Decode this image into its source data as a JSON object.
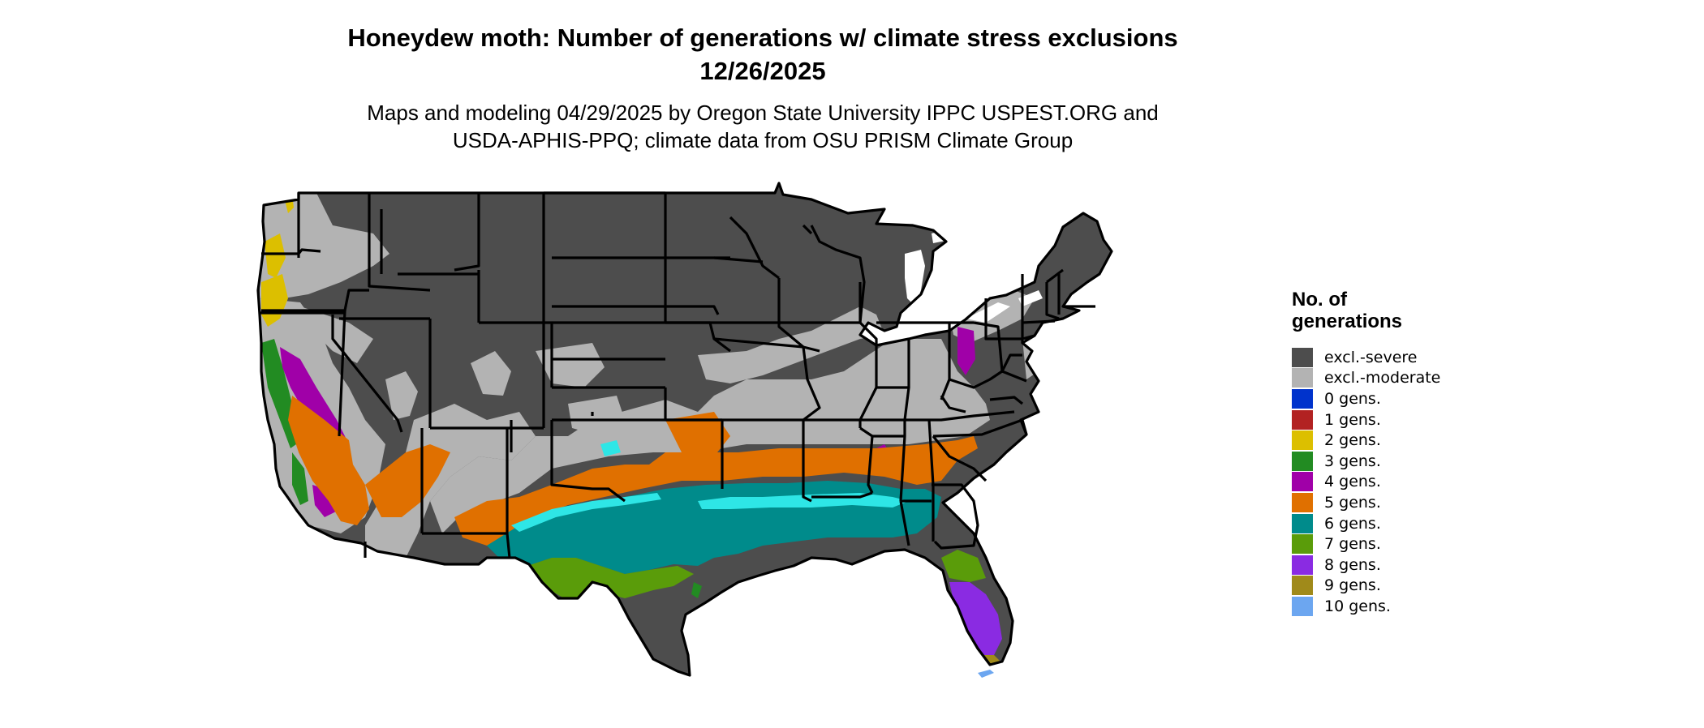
{
  "title": {
    "line1": "Honeydew moth: Number of generations w/ climate stress exclusions",
    "line2": "12/26/2025"
  },
  "subtitle": {
    "line1": "Maps and modeling 04/29/2025 by Oregon State University IPPC USPEST.ORG and",
    "line2": "USDA-APHIS-PPQ; climate data from OSU PRISM Climate Group"
  },
  "legend": {
    "title_line1": "No. of",
    "title_line2": "generations",
    "items": [
      {
        "label": "excl.-severe",
        "color": "#4d4d4d"
      },
      {
        "label": "excl.-moderate",
        "color": "#b3b3b3"
      },
      {
        "label": "0 gens.",
        "color": "#0033cc"
      },
      {
        "label": "1 gens.",
        "color": "#b22222"
      },
      {
        "label": "2 gens.",
        "color": "#dcbf00"
      },
      {
        "label": "3 gens.",
        "color": "#228b22"
      },
      {
        "label": "4 gens.",
        "color": "#a000a8"
      },
      {
        "label": "5 gens.",
        "color": "#e07000"
      },
      {
        "label": "6 gens.",
        "color": "#008b8b"
      },
      {
        "label": "7 gens.",
        "color": "#5a9c0a"
      },
      {
        "label": "8 gens.",
        "color": "#8a2be2"
      },
      {
        "label": "9 gens.",
        "color": "#a08a1a"
      },
      {
        "label": "10 gens.",
        "color": "#6ca6f0"
      }
    ]
  },
  "map": {
    "region": "Contiguous United States",
    "highlight_color": "#2ee6e6",
    "border_color": "#000000"
  }
}
